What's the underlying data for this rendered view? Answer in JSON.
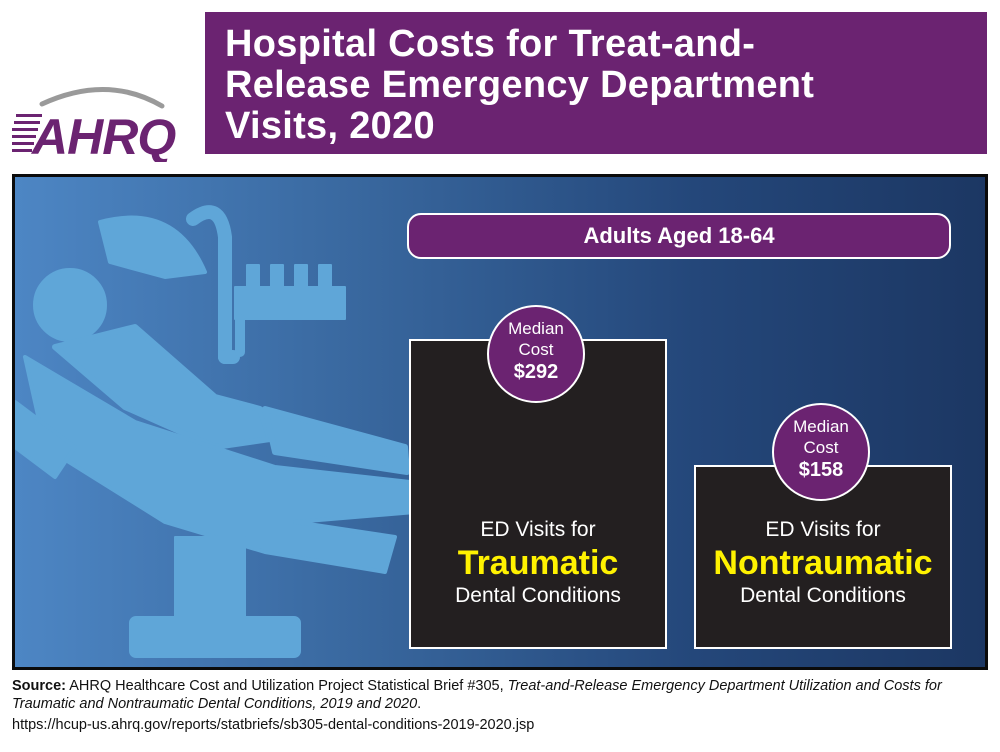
{
  "logo": {
    "text": "AHRQ",
    "colors": {
      "purple": "#6b2371",
      "gray": "#9a9a9a"
    }
  },
  "title": {
    "line1": "Hospital Costs for Treat-and-",
    "line2": "Release Emergency Department",
    "line3": "Visits, 2020"
  },
  "panel": {
    "group_label": "Adults Aged 18-64",
    "icon": "dental-chair-icon"
  },
  "boxes": [
    {
      "badge_line1": "Median",
      "badge_line2": "Cost",
      "badge_value": "$292",
      "prefix": "ED Visits for",
      "kind": "Traumatic",
      "suffix": "Dental Conditions"
    },
    {
      "badge_line1": "Median",
      "badge_line2": "Cost",
      "badge_value": "$158",
      "prefix": "ED Visits for",
      "kind": "Nontraumatic",
      "suffix": "Dental Conditions"
    }
  ],
  "source": {
    "label": "Source:",
    "text": "AHRQ Healthcare Cost and Utilization Project Statistical Brief #305,",
    "italic": "Treat-and-Release Emergency Department Utilization and Costs for Traumatic and Nontraumatic Dental Conditions, 2019 and 2020",
    "end": ".",
    "url": "https://hcup-us.ahrq.gov/reports/statbriefs/sb305-dental-conditions-2019-2020.jsp"
  },
  "chart_data": {
    "type": "bar",
    "title": "Hospital Costs for Treat-and-Release Emergency Department Visits, 2020",
    "subtitle": "Adults Aged 18-64",
    "categories": [
      "Traumatic Dental Conditions",
      "Nontraumatic Dental Conditions"
    ],
    "values": [
      292,
      158
    ],
    "value_labels": [
      "$292",
      "$158"
    ],
    "unit": "USD (median cost)",
    "colors": {
      "bar": "#231f20",
      "badge": "#6b2371",
      "highlight": "#fff200"
    }
  }
}
